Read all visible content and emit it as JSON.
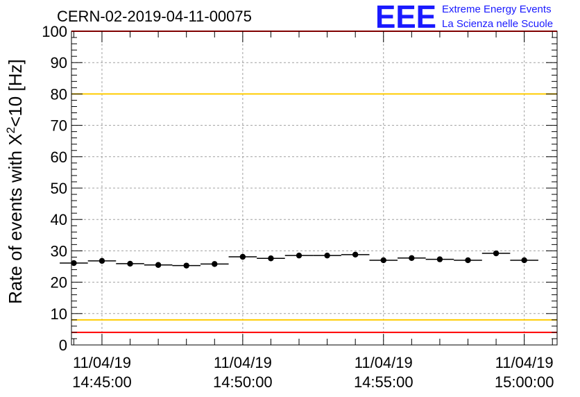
{
  "header": {
    "title": "CERN-02-2019-04-11-00075",
    "logo_letters": "EEE",
    "logo_line1": "Extreme Energy Events",
    "logo_line2": "La Scienza nelle Scuole"
  },
  "colors": {
    "red_limit": "#ff0000",
    "yellow_limit": "#ffcc00",
    "logo": "#1a1aff",
    "marker": "#000000"
  },
  "chart_data": {
    "type": "scatter",
    "title": "CERN-02-2019-04-11-00075",
    "ylabel_main": "Rate of events with X",
    "ylabel_sup": "2",
    "ylabel_rest": "<10 [Hz]",
    "xlabel": "",
    "ylim": [
      0,
      100
    ],
    "xlim": [
      "11/04/19 14:43:55",
      "11/04/19 15:01:10"
    ],
    "yticks": [
      0,
      10,
      20,
      30,
      40,
      50,
      60,
      70,
      80,
      90,
      100
    ],
    "ytick_labels": [
      "0",
      "10",
      "20",
      "30",
      "40",
      "50",
      "60",
      "70",
      "80",
      "90",
      "100"
    ],
    "xticks": [
      {
        "date": "11/04/19",
        "time": "14:45:00"
      },
      {
        "date": "11/04/19",
        "time": "14:50:00"
      },
      {
        "date": "11/04/19",
        "time": "14:55:00"
      },
      {
        "date": "11/04/19",
        "time": "15:00:00"
      }
    ],
    "bin_width": "00:01:00",
    "grid": true,
    "reference_lines": [
      {
        "y": 80,
        "color": "#ffcc00"
      },
      {
        "y": 8,
        "color": "#ffcc00"
      },
      {
        "y": 100,
        "color": "#ff0000"
      },
      {
        "y": 4,
        "color": "#ff0000"
      }
    ],
    "series": [
      {
        "x": [
          "14:44:00",
          "14:45:00",
          "14:46:00",
          "14:47:00",
          "14:48:00",
          "14:49:00",
          "14:50:00",
          "14:51:00",
          "14:52:00",
          "14:53:00",
          "14:54:00",
          "14:55:00",
          "14:56:00",
          "14:57:00",
          "14:58:00",
          "14:59:00",
          "15:00:00"
        ],
        "y": [
          26.1,
          26.8,
          25.9,
          25.5,
          25.3,
          25.8,
          28.1,
          27.6,
          28.5,
          28.5,
          28.8,
          27.0,
          27.7,
          27.3,
          27.0,
          29.2,
          27.0
        ]
      }
    ]
  }
}
